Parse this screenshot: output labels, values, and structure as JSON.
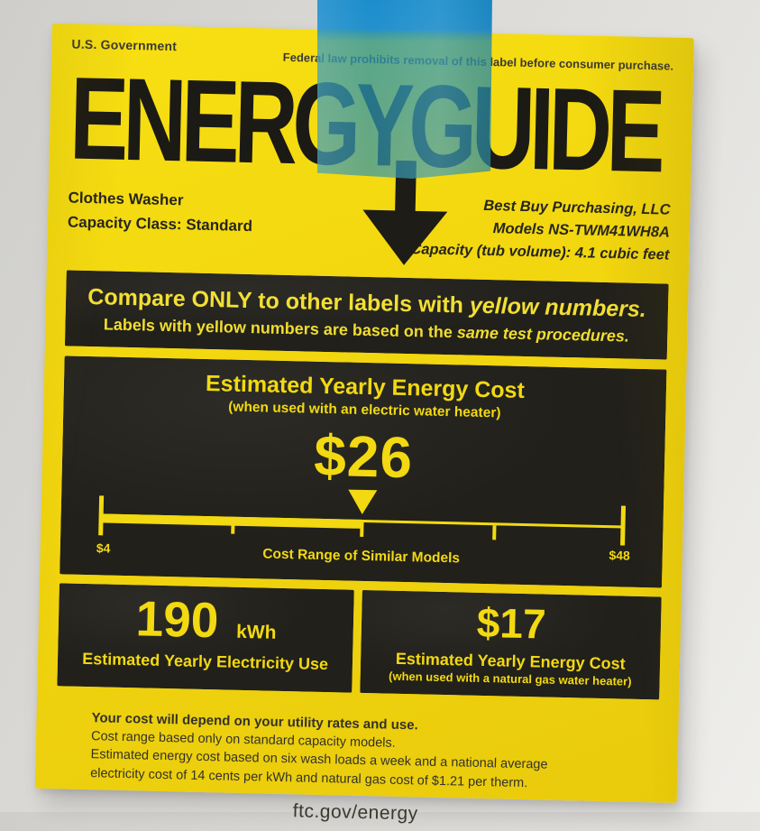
{
  "photo": {
    "wall_color": "#dcdbd7",
    "tape": {
      "kind": "blue-painters-tape",
      "color_over_wall": "#2ba2d6",
      "color_over_label": "#54b3a0"
    }
  },
  "label": {
    "colors": {
      "paper_yellow": "#f2d60f",
      "panel_black": "#21201b",
      "accent_yellow": "#f2d911",
      "ink_dark": "#2f2e26"
    },
    "header": {
      "government": "U.S. Government",
      "legal": "Federal law prohibits removal of this label before consumer purchase.",
      "title": "ENERGYGUIDE"
    },
    "product": {
      "type": "Clothes Washer",
      "capacity_class": "Capacity Class: Standard"
    },
    "manufacturer": {
      "company": "Best Buy Purchasing, LLC",
      "models": "Models NS-TWM41WH8A",
      "capacity": "Capacity (tub volume): 4.1 cubic feet"
    },
    "banner": {
      "line1_main": "Compare ONLY to other labels with ",
      "line1_em": "yellow numbers.",
      "line2_main": "Labels with yellow numbers are based on the ",
      "line2_em": "same test procedures."
    },
    "cost_box": {
      "title": "Estimated Yearly Energy Cost",
      "subtitle": "(when used with an electric water heater)",
      "value": "$26",
      "scale": {
        "min": 4,
        "max": 48,
        "marker": 26,
        "min_label": "$4",
        "max_label": "$48",
        "caption": "Cost Range of Similar Models"
      }
    },
    "electricity_box": {
      "value": "190",
      "unit": "kWh",
      "caption": "Estimated Yearly Electricity Use"
    },
    "gas_box": {
      "value": "$17",
      "caption": "Estimated Yearly Energy Cost",
      "subcaption": "(when used with a natural gas water heater)"
    },
    "footer": {
      "lines": [
        "Your cost will depend on your utility rates and use.",
        "Cost range based only on standard capacity models.",
        "Estimated energy cost based on six wash loads a week and a national average",
        "electricity cost of 14 cents per kWh and natural gas cost of $1.21 per therm."
      ],
      "url": "ftc.gov/energy"
    }
  }
}
